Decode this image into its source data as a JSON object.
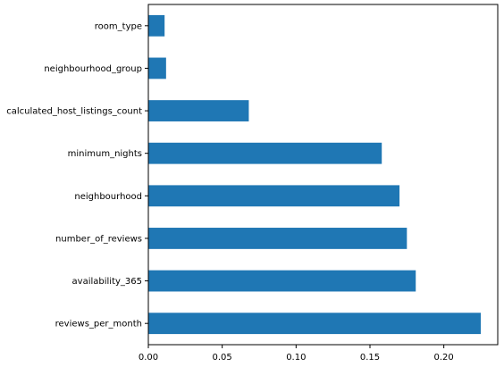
{
  "chart_data": {
    "type": "bar",
    "orientation": "horizontal",
    "categories": [
      "room_type",
      "neighbourhood_group",
      "calculated_host_listings_count",
      "minimum_nights",
      "neighbourhood",
      "number_of_reviews",
      "availability_365",
      "reviews_per_month"
    ],
    "values": [
      0.011,
      0.012,
      0.068,
      0.158,
      0.17,
      0.175,
      0.181,
      0.225
    ],
    "xlim": [
      0.0,
      0.2365
    ],
    "xticks": [
      0.0,
      0.05,
      0.1,
      0.15,
      0.2
    ],
    "xtick_labels": [
      "0.00",
      "0.05",
      "0.10",
      "0.15",
      "0.20"
    ],
    "title": "",
    "xlabel": "",
    "ylabel": "",
    "grid": false,
    "bar_color": "#1f77b4"
  }
}
